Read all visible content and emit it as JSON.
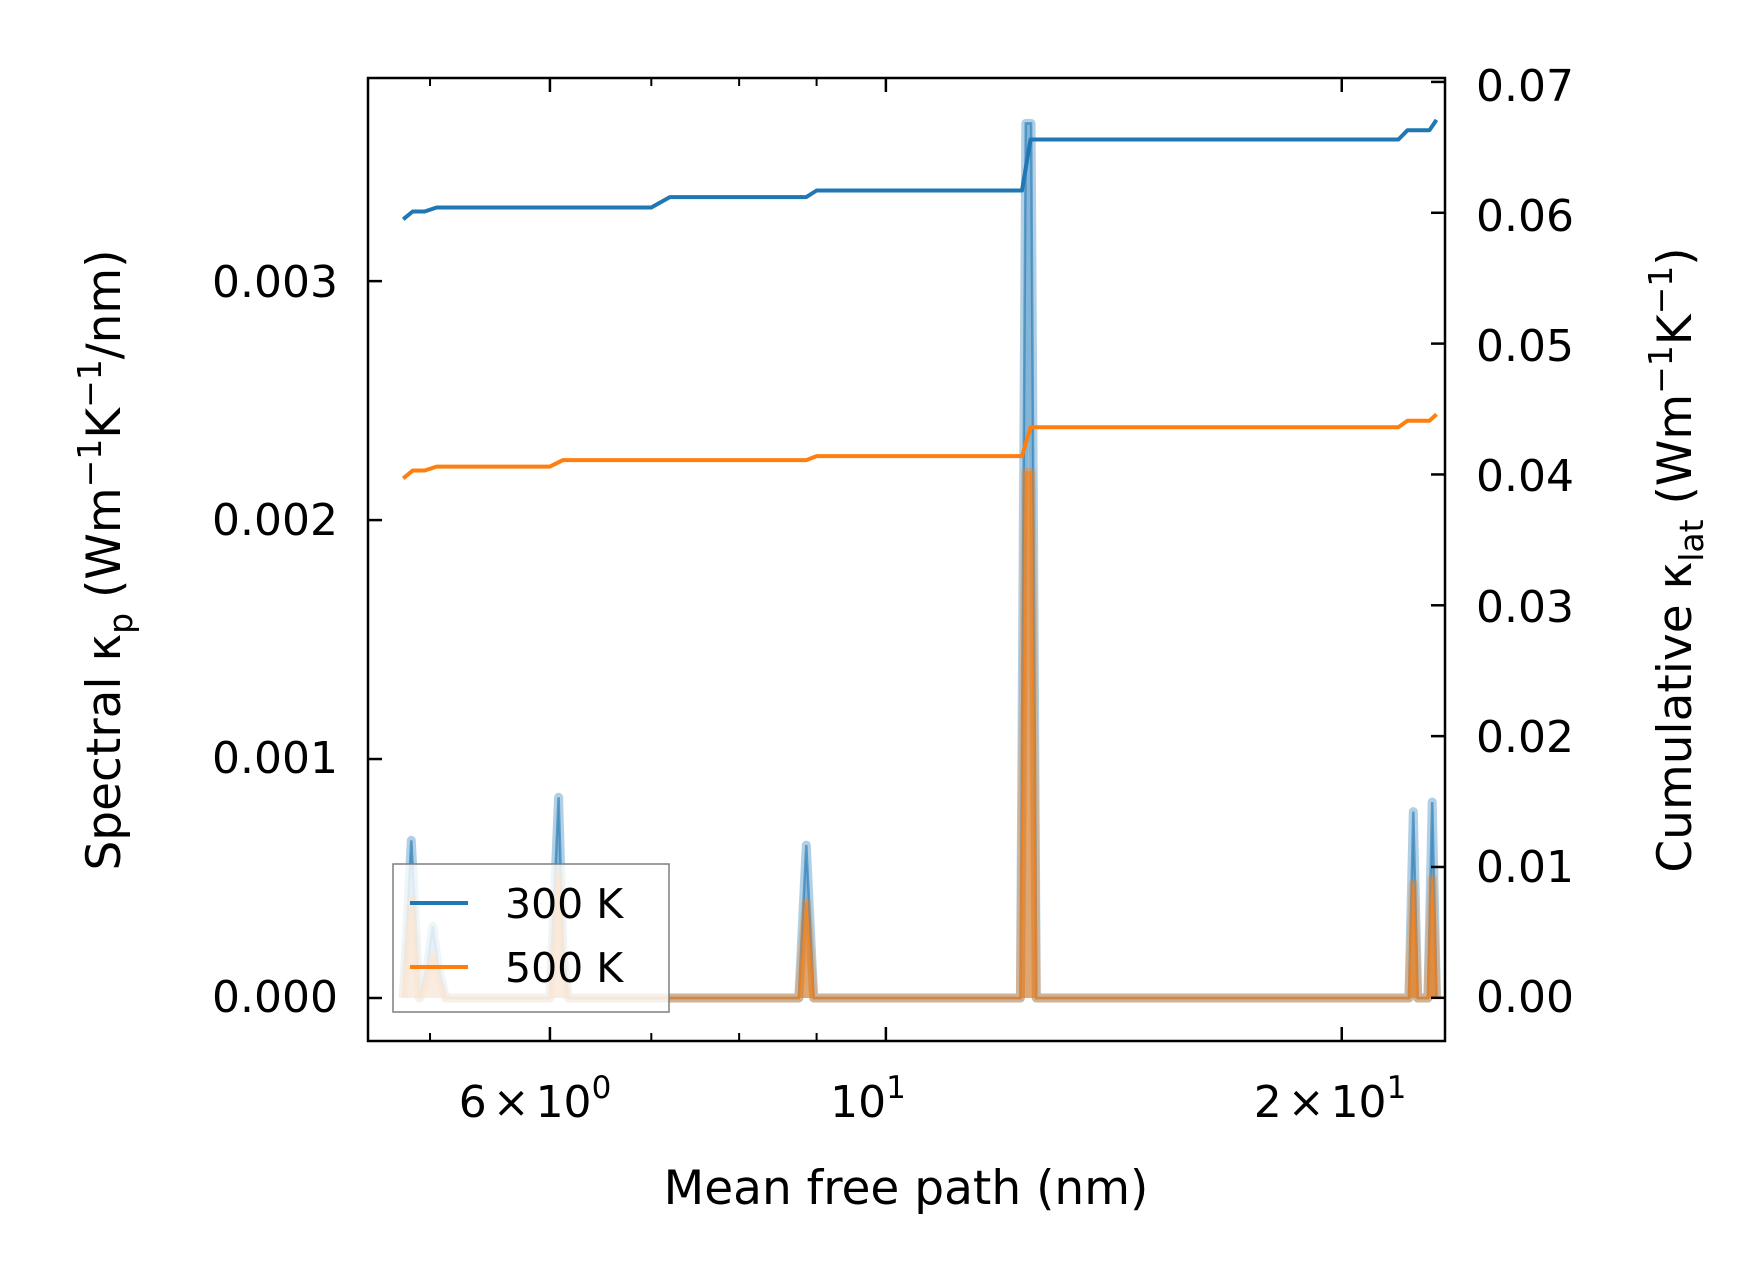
{
  "chart_data": {
    "type": "line",
    "xlabel": "Mean free path (nm)",
    "ylabel_left": {
      "main": "Spectral κ",
      "sub": "p",
      "unit_pre": " (Wm",
      "sup1": "−1",
      "mid": "K",
      "sup2": "−1",
      "unit_post": "/nm)"
    },
    "ylabel_right": {
      "main": "Cumulative κ",
      "sub": "lat",
      "unit_pre": " (Wm",
      "sup1": "−1",
      "mid": "K",
      "sup2": "−1",
      "unit_post": ")"
    },
    "x_scale": "log",
    "xlim": [
      4.55,
      23.4
    ],
    "ylim_left": [
      -0.00018,
      0.00385
    ],
    "ylim_right": [
      -0.0033,
      0.0703
    ],
    "x_ticks": [
      {
        "value": 6,
        "mantissa": "6",
        "times": "×",
        "base": "10",
        "exp": "0"
      },
      {
        "value": 10,
        "mantissa": "",
        "times": "",
        "base": "10",
        "exp": "1"
      },
      {
        "value": 20,
        "mantissa": "2",
        "times": "×",
        "base": "10",
        "exp": "1"
      }
    ],
    "x_minor_ticks": [
      5,
      7,
      8,
      9
    ],
    "y_left_ticks": [
      "0.000",
      "0.001",
      "0.002",
      "0.003"
    ],
    "y_left_tick_values": [
      0,
      0.001,
      0.002,
      0.003
    ],
    "y_right_ticks": [
      "0.00",
      "0.01",
      "0.02",
      "0.03",
      "0.04",
      "0.05",
      "0.06",
      "0.07"
    ],
    "y_right_tick_values": [
      0,
      0.01,
      0.02,
      0.03,
      0.04,
      0.05,
      0.06,
      0.07
    ],
    "legend": {
      "position": "lower-left",
      "entries": [
        "300 K",
        "500 K"
      ]
    },
    "series": [
      {
        "name": "300 K",
        "color": "#1f77b4",
        "cumulative": {
          "x": [
            4.8,
            4.87,
            4.96,
            5.05,
            5.6,
            6.0,
            6.12,
            6.27,
            6.4,
            6.55,
            6.7,
            6.85,
            7.0,
            7.2,
            7.4,
            7.6,
            7.8,
            8.0,
            8.2,
            8.4,
            8.6,
            8.86,
            9.0,
            9.2,
            9.4,
            9.6,
            9.8,
            10.2,
            10.6,
            11.0,
            11.5,
            12.0,
            12.3,
            12.46,
            12.7,
            13.0,
            14.0,
            16.0,
            18.0,
            20.0,
            21.8,
            22.1,
            22.6,
            22.85,
            23.1
          ],
          "y": [
            0.0595,
            0.0601,
            0.0601,
            0.0604,
            0.0604,
            0.0604,
            0.0604,
            0.0604,
            0.0604,
            0.0604,
            0.0604,
            0.0604,
            0.0604,
            0.0612,
            0.0612,
            0.0612,
            0.0612,
            0.0612,
            0.0612,
            0.0612,
            0.0612,
            0.0612,
            0.0617,
            0.0617,
            0.0617,
            0.0617,
            0.0617,
            0.0617,
            0.0617,
            0.0617,
            0.0617,
            0.0617,
            0.0617,
            0.0656,
            0.0656,
            0.0656,
            0.0656,
            0.0656,
            0.0656,
            0.0656,
            0.0656,
            0.0663,
            0.0663,
            0.0663,
            0.0671
          ]
        },
        "spectral": {
          "x": [
            4.8,
            4.86,
            4.92,
            4.98,
            5.02,
            5.06,
            5.12,
            6.0,
            6.08,
            6.12,
            6.17,
            8.76,
            8.86,
            8.96,
            12.27,
            12.37,
            12.47,
            12.57,
            22.15,
            22.3,
            22.45,
            22.8,
            22.95,
            23.1
          ],
          "y": [
            0,
            0.00066,
            0,
            0.00014,
            0.0003,
            0.00014,
            0,
            0,
            0.00084,
            0.0002,
            0,
            0,
            0.00064,
            0,
            0,
            0.00366,
            0.00366,
            0,
            0,
            0.00078,
            0,
            0,
            0.00082,
            0
          ]
        }
      },
      {
        "name": "500 K",
        "color": "#ff7f0e",
        "cumulative": {
          "x": [
            4.8,
            4.87,
            4.96,
            5.05,
            5.6,
            6.0,
            6.12,
            6.3,
            7.0,
            8.0,
            8.86,
            9.0,
            10.0,
            11.0,
            12.0,
            12.3,
            12.46,
            12.7,
            14.0,
            16.0,
            18.0,
            20.0,
            21.8,
            22.1,
            22.6,
            22.85,
            23.1
          ],
          "y": [
            0.0397,
            0.0403,
            0.0403,
            0.0406,
            0.0406,
            0.0406,
            0.0411,
            0.0411,
            0.0411,
            0.0411,
            0.0411,
            0.0414,
            0.0414,
            0.0414,
            0.0414,
            0.0414,
            0.0436,
            0.0436,
            0.0436,
            0.0436,
            0.0436,
            0.0436,
            0.0436,
            0.0441,
            0.0441,
            0.0441,
            0.0446
          ]
        },
        "spectral": {
          "x": [
            4.8,
            4.86,
            4.92,
            4.98,
            5.02,
            5.06,
            5.12,
            6.0,
            6.08,
            6.12,
            6.17,
            8.76,
            8.86,
            8.96,
            12.27,
            12.37,
            12.47,
            12.57,
            22.15,
            22.3,
            22.45,
            22.8,
            22.95,
            23.1
          ],
          "y": [
            0,
            0.00042,
            0,
            8e-05,
            0.00018,
            8e-05,
            0,
            0,
            0.00052,
            0.00012,
            0,
            0,
            0.0004,
            0,
            0,
            0.0022,
            0.0022,
            0,
            0,
            0.00048,
            0,
            0,
            0.0005,
            0
          ]
        }
      }
    ]
  }
}
